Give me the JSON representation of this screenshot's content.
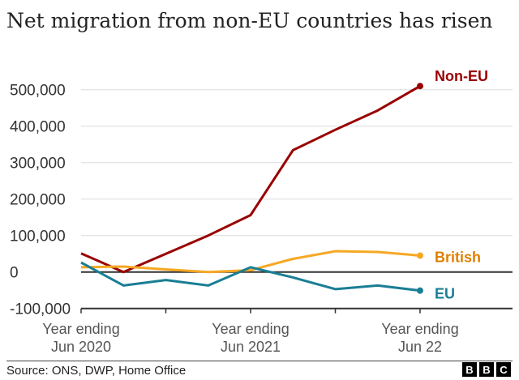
{
  "chart_data": {
    "type": "line",
    "title": "Net migration from non-EU countries has risen",
    "x": [
      "Jun 2020",
      "Sep 2020",
      "Dec 2020",
      "Mar 2021",
      "Jun 2021",
      "Sep 2021",
      "Dec 2021",
      "Mar 2022",
      "Jun 2022"
    ],
    "xtick_labels": [
      [
        "Year ending",
        "Jun 2020"
      ],
      [
        "Year ending",
        "Jun 2021"
      ],
      [
        "Year ending",
        "Jun 22"
      ]
    ],
    "ylim": [
      -100000,
      500000
    ],
    "yticks": [
      "500,000",
      "400,000",
      "300,000",
      "200,000",
      "100,000",
      "0",
      "-100,000"
    ],
    "grid": true,
    "series": [
      {
        "name": "Non-EU",
        "color": "#990000",
        "values": [
          51000,
          0,
          50000,
          100000,
          156000,
          334000,
          390000,
          443000,
          510000
        ]
      },
      {
        "name": "British",
        "color": "#f6a823",
        "label_color": "#e07f00",
        "values": [
          13000,
          15000,
          7000,
          0,
          5000,
          36000,
          57000,
          55000,
          45000
        ]
      },
      {
        "name": "EU",
        "color": "#1a7e94",
        "values": [
          26000,
          -37000,
          -22000,
          -37000,
          13000,
          -15000,
          -47000,
          -37000,
          -51000
        ]
      }
    ]
  },
  "footer": {
    "source": "Source: ONS, DWP, Home Office",
    "logo": [
      "B",
      "B",
      "C"
    ]
  }
}
